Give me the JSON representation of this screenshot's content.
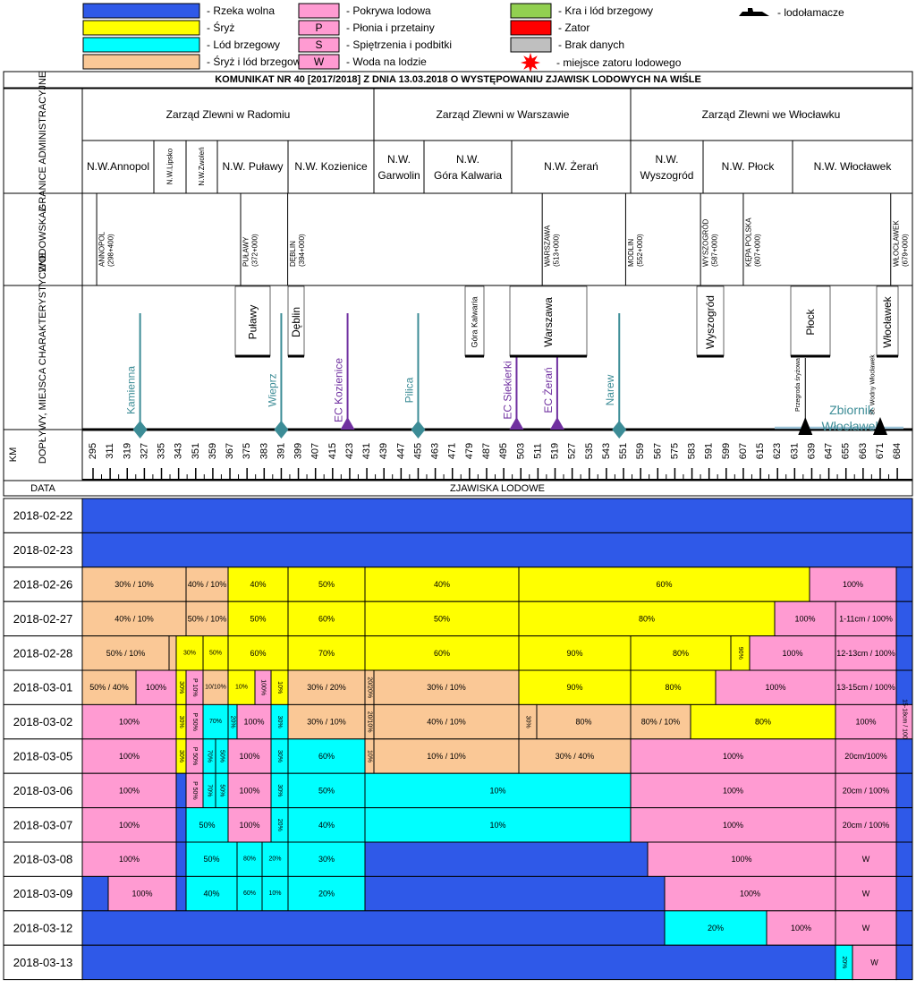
{
  "colors": {
    "blue": "#2f59e8",
    "yellow": "#ffff00",
    "cyan": "#00ffff",
    "peach": "#fac896",
    "pink": "#ff9bd2",
    "green": "#92d050",
    "red": "#ff0000",
    "gray": "#bfbfbf",
    "river": "#3c8c96",
    "plant": "#7030a0",
    "dark": "#000000"
  },
  "legend": [
    {
      "swatch": "blue",
      "label": "- Rzeka wolna"
    },
    {
      "swatch": "yellow",
      "label": "- Śryż"
    },
    {
      "swatch": "cyan",
      "label": "- Lód brzegowy"
    },
    {
      "swatch": "peach",
      "label": "- Śryż i lód brzegowy"
    },
    {
      "swatch": "pink",
      "label": "- Pokrywa lodowa"
    },
    {
      "swatch": "pink",
      "letter": "P",
      "label": "- Płonia i przetainy"
    },
    {
      "swatch": "pink",
      "letter": "S",
      "label": "- Spiętrzenia i podbitki"
    },
    {
      "swatch": "pink",
      "letter": "W",
      "label": "- Woda na lodzie"
    },
    {
      "swatch": "green",
      "label": "- Kra i lód brzegowy"
    },
    {
      "swatch": "red",
      "label": "- Zator"
    },
    {
      "swatch": "gray",
      "label": "- Brak danych"
    },
    {
      "swatch": "star",
      "label": "- miejsce zatoru lodowego"
    },
    {
      "swatch": "ship",
      "label": "- lodołamacze"
    }
  ],
  "title": "KOMUNIKAT NR 40 [2017/2018] Z DNIA 13.03.2018 O WYSTĘPOWANIU ZJAWISK LODOWYCH NA WIŚLE",
  "row_labels": {
    "admin": "GRANICE ADMINISTRACYJNE",
    "gauge": "WODOWSKAZ",
    "trib": "DOPŁYWY, MIEJSCA CHARAKTERYSTYCZNE",
    "km": "KM",
    "date": "DATA"
  },
  "zarzady": [
    "Zarząd Zlewni w Radomiu",
    "Zarząd Zlewni w Warszawie",
    "Zarząd Zlewni we Włocławku"
  ],
  "nw": [
    "N.W.Annopol",
    "N.W.Lipsko",
    "N.W.Zwoleń",
    "N.W. Puławy",
    "N.W. Kozienice",
    "N.W. Garwolin",
    "N.W. Góra Kalwaria",
    "N.W. Żerań",
    "N.W. Wyszogród",
    "N.W. Płock",
    "N.W. Włocławek"
  ],
  "gauges": [
    "ANNOPOL (298+400)",
    "PUŁAWY (372+000)",
    "DĘBLIN (394+000)",
    "WARSZAWA (513+000)",
    "MODLIN (552+000)",
    "WYSZOGRÓD (587+000)",
    "KĘPA POLSKA (607+000)",
    "WŁOCŁAWEK (679+000)"
  ],
  "towns": [
    "Puławy",
    "Dęblin",
    "Góra Kalwaria",
    "Warszawa",
    "Wyszogród",
    "Płock",
    "Włocławek"
  ],
  "tributaries": [
    "Kamienna",
    "Wieprz",
    "EC Kozienice",
    "Pilica",
    "EC Siekierki",
    "EC Żerań",
    "Narew"
  ],
  "extras": {
    "reservoir": "Zbiornik Włocławek",
    "dam1": "Przegroda śryżowa",
    "dam2": "St. Wodny Włocławek"
  },
  "km_ticks": [
    295,
    311,
    319,
    327,
    335,
    343,
    351,
    359,
    367,
    375,
    383,
    391,
    399,
    407,
    415,
    423,
    431,
    439,
    447,
    455,
    463,
    471,
    479,
    487,
    495,
    503,
    511,
    519,
    527,
    535,
    543,
    551,
    559,
    567,
    575,
    583,
    591,
    599,
    607,
    615,
    623,
    631,
    639,
    647,
    655,
    663,
    671,
    684
  ],
  "header_zjawiska": "ZJAWISKA LODOWE",
  "chart_data": {
    "type": "table",
    "x_unit": "km",
    "legend_states": [
      "blue",
      "yellow",
      "cyan",
      "peach",
      "pink"
    ],
    "rows": [
      {
        "date": "2018-02-22",
        "segments": [
          [
            "blue",
            ""
          ]
        ]
      },
      {
        "date": "2018-02-23",
        "segments": [
          [
            "blue",
            ""
          ]
        ]
      },
      {
        "date": "2018-02-26",
        "segments": [
          [
            "peach",
            "30% / 10%"
          ],
          [
            "peach",
            "40% / 10%"
          ],
          [
            "yellow",
            "40%"
          ],
          [
            "yellow",
            "50%"
          ],
          [
            "yellow",
            "40%"
          ],
          [
            "yellow",
            "60%"
          ],
          [
            "pink",
            "100%"
          ],
          [
            "blue",
            ""
          ]
        ]
      },
      {
        "date": "2018-02-27",
        "segments": [
          [
            "peach",
            "40% / 10%"
          ],
          [
            "peach",
            "50% / 10%"
          ],
          [
            "yellow",
            "50%"
          ],
          [
            "yellow",
            "60%"
          ],
          [
            "yellow",
            "50%"
          ],
          [
            "yellow",
            "80%"
          ],
          [
            "pink",
            "100%"
          ],
          [
            "pink",
            "1-11cm / 100%"
          ],
          [
            "blue",
            ""
          ]
        ]
      },
      {
        "date": "2018-02-28",
        "segments": [
          [
            "peach",
            "50% / 10%"
          ],
          [
            "peach",
            ""
          ],
          [
            "yellow",
            "30%"
          ],
          [
            "yellow",
            "50%"
          ],
          [
            "yellow",
            "60%"
          ],
          [
            "yellow",
            "70%"
          ],
          [
            "yellow",
            "60%"
          ],
          [
            "yellow",
            "90%"
          ],
          [
            "yellow",
            "80%"
          ],
          [
            "yellow",
            "90%"
          ],
          [
            "pink",
            "100%"
          ],
          [
            "pink",
            "12-13cm / 100%"
          ],
          [
            "blue",
            ""
          ]
        ]
      },
      {
        "date": "2018-03-01",
        "segments": [
          [
            "peach",
            "50% / 40%"
          ],
          [
            "pink",
            "100%"
          ],
          [
            "yellow",
            "30%"
          ],
          [
            "pink",
            "P 10%"
          ],
          [
            "peach",
            "10/10%"
          ],
          [
            "yellow",
            "10%"
          ],
          [
            "pink",
            "100%"
          ],
          [
            "yellow",
            "10%"
          ],
          [
            "peach",
            "30% / 20%"
          ],
          [
            "peach",
            "20/20%"
          ],
          [
            "peach",
            "30% / 10%"
          ],
          [
            "yellow",
            "90%"
          ],
          [
            "yellow",
            "80%"
          ],
          [
            "pink",
            "100%"
          ],
          [
            "pink",
            "13-15cm / 100%"
          ],
          [
            "blue",
            ""
          ]
        ]
      },
      {
        "date": "2018-03-02",
        "segments": [
          [
            "pink",
            "100%"
          ],
          [
            "yellow",
            "30%"
          ],
          [
            "pink",
            "P 50%"
          ],
          [
            "cyan",
            "70%"
          ],
          [
            "cyan",
            "20%"
          ],
          [
            "pink",
            "100%"
          ],
          [
            "cyan",
            "30%"
          ],
          [
            "peach",
            "30% / 10%"
          ],
          [
            "peach",
            "20/10%"
          ],
          [
            "peach",
            "40% / 10%"
          ],
          [
            "peach",
            "30%"
          ],
          [
            "peach",
            "80%"
          ],
          [
            "peach",
            "80% / 10%"
          ],
          [
            "yellow",
            "80%"
          ],
          [
            "pink",
            "100%"
          ],
          [
            "pink",
            "15-18cm / 100%"
          ],
          [
            "blue",
            ""
          ]
        ]
      },
      {
        "date": "2018-03-05",
        "segments": [
          [
            "pink",
            "100%"
          ],
          [
            "yellow",
            "30%"
          ],
          [
            "pink",
            "P 50%"
          ],
          [
            "cyan",
            "70%"
          ],
          [
            "cyan",
            "50%"
          ],
          [
            "pink",
            "100%"
          ],
          [
            "cyan",
            "30%"
          ],
          [
            "cyan",
            "60%"
          ],
          [
            "peach",
            "10%"
          ],
          [
            "peach",
            "10% / 10%"
          ],
          [
            "peach",
            "30% / 40%"
          ],
          [
            "pink",
            "100%"
          ],
          [
            "pink",
            "20cm/100%"
          ],
          [
            "blue",
            ""
          ]
        ]
      },
      {
        "date": "2018-03-06",
        "segments": [
          [
            "pink",
            "100%"
          ],
          [
            "blue",
            ""
          ],
          [
            "pink",
            "P 50%"
          ],
          [
            "cyan",
            "70%"
          ],
          [
            "cyan",
            "50%"
          ],
          [
            "pink",
            "100%"
          ],
          [
            "cyan",
            "30%"
          ],
          [
            "cyan",
            "50%"
          ],
          [
            "cyan",
            "10%"
          ],
          [
            "pink",
            "100%"
          ],
          [
            "pink",
            "20cm / 100%"
          ],
          [
            "blue",
            ""
          ]
        ]
      },
      {
        "date": "2018-03-07",
        "segments": [
          [
            "pink",
            "100%"
          ],
          [
            "blue",
            ""
          ],
          [
            "cyan",
            "50%"
          ],
          [
            "pink",
            "100%"
          ],
          [
            "cyan",
            "20%"
          ],
          [
            "cyan",
            "40%"
          ],
          [
            "cyan",
            "10%"
          ],
          [
            "pink",
            "100%"
          ],
          [
            "pink",
            "20cm / 100%"
          ],
          [
            "blue",
            ""
          ]
        ]
      },
      {
        "date": "2018-03-08",
        "segments": [
          [
            "pink",
            "100%"
          ],
          [
            "blue",
            ""
          ],
          [
            "cyan",
            "50%"
          ],
          [
            "cyan",
            "80%"
          ],
          [
            "cyan",
            "20%"
          ],
          [
            "cyan",
            "30%"
          ],
          [
            "blue",
            ""
          ],
          [
            "pink",
            "100%"
          ],
          [
            "pink",
            "W"
          ],
          [
            "blue",
            ""
          ]
        ]
      },
      {
        "date": "2018-03-09",
        "segments": [
          [
            "blue",
            ""
          ],
          [
            "pink",
            "100%"
          ],
          [
            "blue",
            ""
          ],
          [
            "cyan",
            "40%"
          ],
          [
            "cyan",
            "60%"
          ],
          [
            "cyan",
            "10%"
          ],
          [
            "cyan",
            "20%"
          ],
          [
            "blue",
            ""
          ],
          [
            "pink",
            "100%"
          ],
          [
            "pink",
            "W"
          ],
          [
            "blue",
            ""
          ]
        ]
      },
      {
        "date": "2018-03-12",
        "segments": [
          [
            "blue",
            ""
          ],
          [
            "cyan",
            "20%"
          ],
          [
            "pink",
            "100%"
          ],
          [
            "pink",
            "W"
          ],
          [
            "blue",
            ""
          ]
        ]
      },
      {
        "date": "2018-03-13",
        "segments": [
          [
            "blue",
            ""
          ],
          [
            "cyan",
            "20%"
          ],
          [
            "pink",
            "W"
          ],
          [
            "blue",
            ""
          ]
        ]
      }
    ]
  }
}
